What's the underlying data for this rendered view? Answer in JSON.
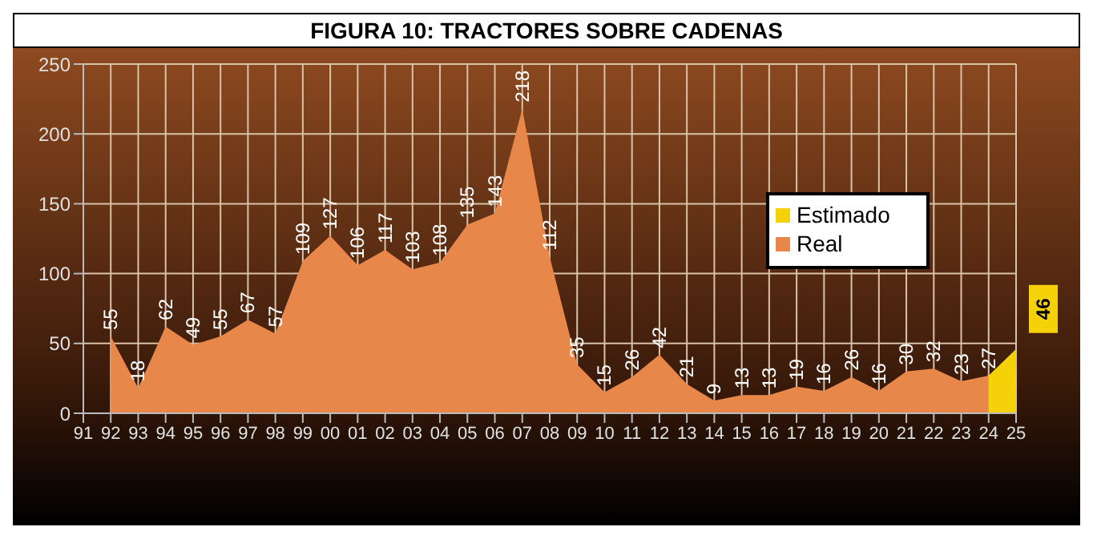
{
  "chart_data": {
    "type": "area",
    "title": "FIGURA 10: TRACTORES SOBRE CADENAS",
    "categories": [
      "91",
      "92",
      "93",
      "94",
      "95",
      "96",
      "97",
      "98",
      "99",
      "00",
      "01",
      "02",
      "03",
      "04",
      "05",
      "06",
      "07",
      "08",
      "09",
      "10",
      "11",
      "12",
      "13",
      "14",
      "15",
      "16",
      "17",
      "18",
      "19",
      "20",
      "21",
      "22",
      "23",
      "24",
      "25"
    ],
    "series": [
      {
        "name": "Real",
        "color": "#e8874a",
        "values": [
          null,
          55,
          18,
          62,
          49,
          55,
          67,
          57,
          109,
          127,
          106,
          117,
          103,
          108,
          135,
          143,
          218,
          112,
          35,
          15,
          26,
          42,
          21,
          9,
          13,
          13,
          19,
          16,
          26,
          16,
          30,
          32,
          23,
          27,
          null
        ],
        "value_labels": [
          null,
          "55",
          "18",
          "62",
          "49",
          "55",
          "67",
          "57",
          "109",
          "127",
          "106",
          "117",
          "103",
          "108",
          "135",
          "143",
          "218",
          "112",
          "35",
          "15",
          "26",
          "42",
          "21",
          "9",
          "13",
          "13",
          "19",
          "16",
          "26",
          "16",
          "30",
          "32",
          "23",
          "27",
          null
        ]
      },
      {
        "name": "Estimado",
        "color": "#f5d10a",
        "values": [
          null,
          null,
          null,
          null,
          null,
          null,
          null,
          null,
          null,
          null,
          null,
          null,
          null,
          null,
          null,
          null,
          null,
          null,
          null,
          null,
          null,
          null,
          null,
          null,
          null,
          null,
          null,
          null,
          null,
          null,
          null,
          null,
          null,
          27,
          46
        ],
        "value_labels": [
          null,
          null,
          null,
          null,
          null,
          null,
          null,
          null,
          null,
          null,
          null,
          null,
          null,
          null,
          null,
          null,
          null,
          null,
          null,
          null,
          null,
          null,
          null,
          null,
          null,
          null,
          null,
          null,
          null,
          null,
          null,
          null,
          null,
          null,
          "46"
        ]
      }
    ],
    "ylim": [
      0,
      250
    ],
    "yticks": [
      0,
      50,
      100,
      150,
      200,
      250
    ],
    "grid": true,
    "legend": "top right"
  }
}
